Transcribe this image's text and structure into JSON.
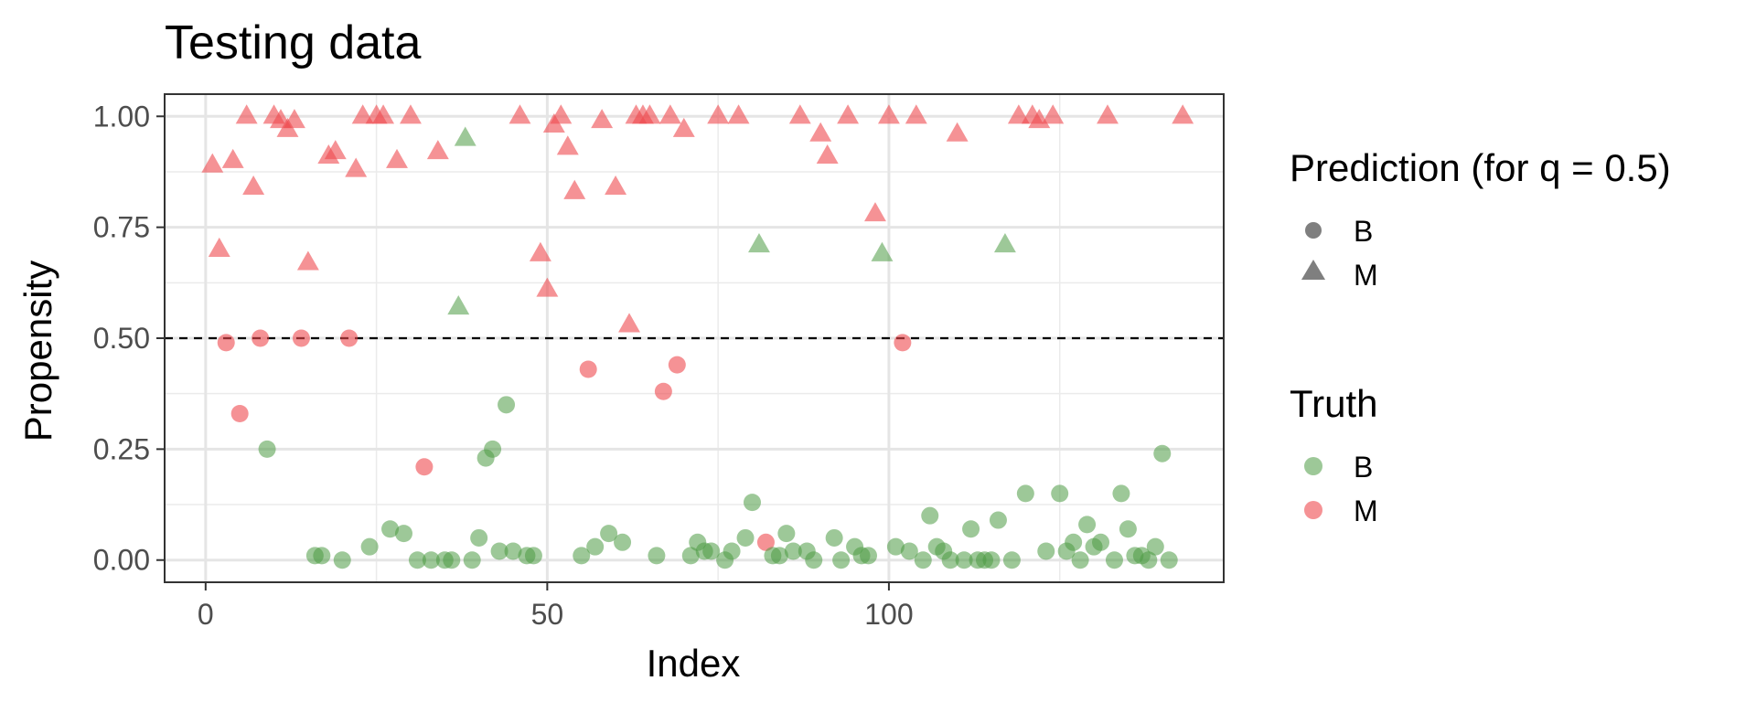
{
  "chart_data": {
    "type": "scatter",
    "title": "Testing data",
    "xlabel": "Index",
    "ylabel": "Propensity",
    "xlim": [
      -6,
      149
    ],
    "ylim": [
      -0.05,
      1.05
    ],
    "x_ticks": [
      0,
      50,
      100
    ],
    "x_tick_labels": [
      "0",
      "50",
      "100"
    ],
    "y_ticks": [
      0,
      0.25,
      0.5,
      0.75,
      1
    ],
    "y_tick_labels": [
      "0.00",
      "0.25",
      "0.50",
      "0.75",
      "1.00"
    ],
    "grid": true,
    "threshold_line": 0.5,
    "colors": {
      "B": "#4d9a43",
      "M": "#ee4a4f"
    },
    "legend_position": "right",
    "legend": {
      "shape_title": "Prediction (for q = 0.5)",
      "shape_entries": [
        {
          "label": "B",
          "shape": "circle"
        },
        {
          "label": "M",
          "shape": "triangle"
        }
      ],
      "color_title": "Truth",
      "color_entries": [
        {
          "label": "B",
          "color": "#4d9a43"
        },
        {
          "label": "M",
          "color": "#ee4a4f"
        }
      ]
    },
    "points": [
      [
        1,
        0.89,
        "M",
        "M"
      ],
      [
        2,
        0.7,
        "M",
        "M"
      ],
      [
        3,
        0.49,
        "B",
        "M"
      ],
      [
        4,
        0.9,
        "M",
        "M"
      ],
      [
        5,
        0.33,
        "B",
        "M"
      ],
      [
        6,
        1.0,
        "M",
        "M"
      ],
      [
        7,
        0.84,
        "M",
        "M"
      ],
      [
        8,
        0.5,
        "B",
        "M"
      ],
      [
        9,
        0.25,
        "B",
        "B"
      ],
      [
        10,
        1.0,
        "M",
        "M"
      ],
      [
        11,
        0.99,
        "M",
        "M"
      ],
      [
        12,
        0.97,
        "M",
        "M"
      ],
      [
        13,
        0.99,
        "M",
        "M"
      ],
      [
        14,
        0.5,
        "B",
        "M"
      ],
      [
        15,
        0.67,
        "M",
        "M"
      ],
      [
        16,
        0.01,
        "B",
        "B"
      ],
      [
        17,
        0.01,
        "B",
        "B"
      ],
      [
        18,
        0.91,
        "M",
        "M"
      ],
      [
        19,
        0.92,
        "M",
        "M"
      ],
      [
        20,
        0.0,
        "B",
        "B"
      ],
      [
        21,
        0.5,
        "B",
        "M"
      ],
      [
        22,
        0.88,
        "M",
        "M"
      ],
      [
        23,
        1.0,
        "M",
        "M"
      ],
      [
        24,
        0.03,
        "B",
        "B"
      ],
      [
        25,
        1.0,
        "M",
        "M"
      ],
      [
        26,
        1.0,
        "M",
        "M"
      ],
      [
        27,
        0.07,
        "B",
        "B"
      ],
      [
        28,
        0.9,
        "M",
        "M"
      ],
      [
        29,
        0.06,
        "B",
        "B"
      ],
      [
        30,
        1.0,
        "M",
        "M"
      ],
      [
        31,
        0.0,
        "B",
        "B"
      ],
      [
        32,
        0.21,
        "B",
        "M"
      ],
      [
        33,
        0.0,
        "B",
        "B"
      ],
      [
        34,
        0.92,
        "M",
        "M"
      ],
      [
        35,
        0.0,
        "B",
        "B"
      ],
      [
        36,
        0.0,
        "B",
        "B"
      ],
      [
        37,
        0.57,
        "M",
        "B"
      ],
      [
        38,
        0.95,
        "M",
        "B"
      ],
      [
        39,
        0.0,
        "B",
        "B"
      ],
      [
        40,
        0.05,
        "B",
        "B"
      ],
      [
        41,
        0.23,
        "B",
        "B"
      ],
      [
        42,
        0.25,
        "B",
        "B"
      ],
      [
        43,
        0.02,
        "B",
        "B"
      ],
      [
        44,
        0.35,
        "B",
        "B"
      ],
      [
        45,
        0.02,
        "B",
        "B"
      ],
      [
        46,
        1.0,
        "M",
        "M"
      ],
      [
        47,
        0.01,
        "B",
        "B"
      ],
      [
        48,
        0.01,
        "B",
        "B"
      ],
      [
        49,
        0.69,
        "M",
        "M"
      ],
      [
        50,
        0.61,
        "M",
        "M"
      ],
      [
        51,
        0.98,
        "M",
        "M"
      ],
      [
        52,
        1.0,
        "M",
        "M"
      ],
      [
        53,
        0.93,
        "M",
        "M"
      ],
      [
        54,
        0.83,
        "M",
        "M"
      ],
      [
        55,
        0.01,
        "B",
        "B"
      ],
      [
        56,
        0.43,
        "B",
        "M"
      ],
      [
        57,
        0.03,
        "B",
        "B"
      ],
      [
        58,
        0.99,
        "M",
        "M"
      ],
      [
        59,
        0.06,
        "B",
        "B"
      ],
      [
        60,
        0.84,
        "M",
        "M"
      ],
      [
        61,
        0.04,
        "B",
        "B"
      ],
      [
        62,
        0.53,
        "M",
        "M"
      ],
      [
        63,
        1.0,
        "M",
        "M"
      ],
      [
        64,
        1.0,
        "M",
        "M"
      ],
      [
        65,
        1.0,
        "M",
        "M"
      ],
      [
        66,
        0.01,
        "B",
        "B"
      ],
      [
        67,
        0.38,
        "B",
        "M"
      ],
      [
        68,
        1.0,
        "M",
        "M"
      ],
      [
        69,
        0.44,
        "B",
        "M"
      ],
      [
        70,
        0.97,
        "M",
        "M"
      ],
      [
        71,
        0.01,
        "B",
        "B"
      ],
      [
        72,
        0.04,
        "B",
        "B"
      ],
      [
        73,
        0.02,
        "B",
        "B"
      ],
      [
        74,
        0.02,
        "B",
        "B"
      ],
      [
        75,
        1.0,
        "M",
        "M"
      ],
      [
        76,
        0.0,
        "B",
        "B"
      ],
      [
        77,
        0.02,
        "B",
        "B"
      ],
      [
        78,
        1.0,
        "M",
        "M"
      ],
      [
        79,
        0.05,
        "B",
        "B"
      ],
      [
        80,
        0.13,
        "B",
        "B"
      ],
      [
        81,
        0.71,
        "M",
        "B"
      ],
      [
        82,
        0.04,
        "B",
        "M"
      ],
      [
        83,
        0.01,
        "B",
        "B"
      ],
      [
        84,
        0.01,
        "B",
        "B"
      ],
      [
        85,
        0.06,
        "B",
        "B"
      ],
      [
        86,
        0.02,
        "B",
        "B"
      ],
      [
        87,
        1.0,
        "M",
        "M"
      ],
      [
        88,
        0.02,
        "B",
        "B"
      ],
      [
        89,
        0.0,
        "B",
        "B"
      ],
      [
        90,
        0.96,
        "M",
        "M"
      ],
      [
        91,
        0.91,
        "M",
        "M"
      ],
      [
        92,
        0.05,
        "B",
        "B"
      ],
      [
        93,
        0.0,
        "B",
        "B"
      ],
      [
        94,
        1.0,
        "M",
        "M"
      ],
      [
        95,
        0.03,
        "B",
        "B"
      ],
      [
        96,
        0.01,
        "B",
        "B"
      ],
      [
        97,
        0.01,
        "B",
        "B"
      ],
      [
        98,
        0.78,
        "M",
        "M"
      ],
      [
        99,
        0.69,
        "M",
        "B"
      ],
      [
        100,
        1.0,
        "M",
        "M"
      ],
      [
        101,
        0.03,
        "B",
        "B"
      ],
      [
        102,
        0.49,
        "B",
        "M"
      ],
      [
        103,
        0.02,
        "B",
        "B"
      ],
      [
        104,
        1.0,
        "M",
        "M"
      ],
      [
        105,
        0.0,
        "B",
        "B"
      ],
      [
        106,
        0.1,
        "B",
        "B"
      ],
      [
        107,
        0.03,
        "B",
        "B"
      ],
      [
        108,
        0.02,
        "B",
        "B"
      ],
      [
        109,
        0.0,
        "B",
        "B"
      ],
      [
        110,
        0.96,
        "M",
        "M"
      ],
      [
        111,
        0.0,
        "B",
        "B"
      ],
      [
        112,
        0.07,
        "B",
        "B"
      ],
      [
        113,
        0.0,
        "B",
        "B"
      ],
      [
        114,
        0.0,
        "B",
        "B"
      ],
      [
        115,
        0.0,
        "B",
        "B"
      ],
      [
        116,
        0.09,
        "B",
        "B"
      ],
      [
        117,
        0.71,
        "M",
        "B"
      ],
      [
        118,
        0.0,
        "B",
        "B"
      ],
      [
        119,
        1.0,
        "M",
        "M"
      ],
      [
        120,
        0.15,
        "B",
        "B"
      ],
      [
        121,
        1.0,
        "M",
        "M"
      ],
      [
        122,
        0.99,
        "M",
        "M"
      ],
      [
        123,
        0.02,
        "B",
        "B"
      ],
      [
        124,
        1.0,
        "M",
        "M"
      ],
      [
        125,
        0.15,
        "B",
        "B"
      ],
      [
        126,
        0.02,
        "B",
        "B"
      ],
      [
        127,
        0.04,
        "B",
        "B"
      ],
      [
        128,
        0.0,
        "B",
        "B"
      ],
      [
        129,
        0.08,
        "B",
        "B"
      ],
      [
        130,
        0.03,
        "B",
        "B"
      ],
      [
        131,
        0.04,
        "B",
        "B"
      ],
      [
        132,
        1.0,
        "M",
        "M"
      ],
      [
        133,
        0.0,
        "B",
        "B"
      ],
      [
        134,
        0.15,
        "B",
        "B"
      ],
      [
        135,
        0.07,
        "B",
        "B"
      ],
      [
        136,
        0.01,
        "B",
        "B"
      ],
      [
        137,
        0.01,
        "B",
        "B"
      ],
      [
        138,
        0.0,
        "B",
        "B"
      ],
      [
        139,
        0.03,
        "B",
        "B"
      ],
      [
        140,
        0.24,
        "B",
        "B"
      ],
      [
        141,
        0.0,
        "B",
        "B"
      ],
      [
        143,
        1.0,
        "M",
        "M"
      ]
    ],
    "point_fields": [
      "index",
      "propensity",
      "prediction",
      "truth"
    ]
  }
}
